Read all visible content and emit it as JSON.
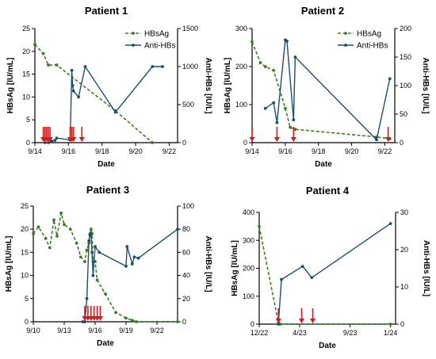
{
  "colors": {
    "hbsag": "#3b7d23",
    "antihbs": "#1d4e6b",
    "arrow": "#d11a1a",
    "axis": "#000000"
  },
  "legend": {
    "hbsag": "HBsAg",
    "antihbs": "Anti-HBs"
  },
  "chart_data": [
    {
      "type": "line",
      "title": "Patient 1",
      "xlabel": "Date",
      "ylabel_left": "HBsAg [IU/mL]",
      "ylabel_right": "Anti-HBs [IU/L]",
      "xlim": [
        0,
        8.5
      ],
      "xtick_values": [
        0,
        2,
        4,
        6,
        8
      ],
      "xtick_labels": [
        "9/14",
        "9/16",
        "9/18",
        "9/20",
        "9/22"
      ],
      "ylim_left": [
        0,
        25
      ],
      "yticks_left": [
        "0",
        "5",
        "10",
        "15",
        "20",
        "25"
      ],
      "ylim_right": [
        0,
        1500
      ],
      "yticks_right": [
        "0",
        "500",
        "1000",
        "1500"
      ],
      "legend_position": "top-right",
      "series": [
        {
          "name": "HBsAg",
          "axis": "left",
          "style": "dashed",
          "x": [
            0,
            0.5,
            0.8,
            1.3,
            4.8,
            7.0
          ],
          "y": [
            21.5,
            19.5,
            17,
            17,
            7,
            0
          ]
        },
        {
          "name": "Anti-HBs",
          "axis": "right",
          "style": "solid",
          "x": [
            0.6,
            0.8,
            1.0,
            1.2,
            1.3,
            2.1,
            2.2,
            2.25,
            2.3,
            2.6,
            3.0,
            4.8,
            7.0,
            7.6
          ],
          "y": [
            0,
            0,
            20,
            30,
            60,
            35,
            950,
            750,
            680,
            600,
            1000,
            400,
            1000,
            1000
          ]
        }
      ],
      "treatments_x": [
        0.5,
        0.6,
        0.7,
        0.8,
        0.9,
        2.1,
        2.2,
        2.3,
        2.8
      ]
    },
    {
      "type": "line",
      "title": "Patient 2",
      "xlabel": "Date",
      "ylabel_left": "HBsAg [IU/mL]",
      "ylabel_right": "Anti-HBs [IU/L]",
      "xlim": [
        0,
        8.6
      ],
      "xtick_values": [
        0,
        2,
        4,
        6,
        8
      ],
      "xtick_labels": [
        "9/14",
        "9/16",
        "9/18",
        "9/20",
        "9/22"
      ],
      "ylim_left": [
        0,
        300
      ],
      "yticks_left": [
        "0",
        "100",
        "200",
        "300"
      ],
      "ylim_right": [
        0,
        200
      ],
      "yticks_right": [
        "0",
        "50",
        "100",
        "150",
        "200"
      ],
      "legend_position": "top-right",
      "series": [
        {
          "name": "HBsAg",
          "axis": "left",
          "style": "dashed",
          "x": [
            0,
            0.5,
            0.8,
            1.3,
            2.0,
            2.3,
            2.6,
            7.5,
            8.3
          ],
          "y": [
            265,
            210,
            200,
            190,
            90,
            40,
            35,
            15,
            10
          ]
        },
        {
          "name": "Anti-HBs",
          "axis": "right",
          "style": "solid",
          "x": [
            0.8,
            1.3,
            1.5,
            2.0,
            2.1,
            2.5,
            2.6,
            7.5,
            8.3
          ],
          "y": [
            60,
            70,
            35,
            180,
            178,
            40,
            150,
            5,
            112
          ]
        }
      ],
      "treatments_x": [
        0,
        1.5,
        2.5,
        8.2
      ]
    },
    {
      "type": "line",
      "title": "Patient 3",
      "xlabel": "Date",
      "ylabel_left": "HBsAg [IU/mL]",
      "ylabel_right": "Anti-HBs [IU/L]",
      "xlim": [
        0,
        14
      ],
      "xtick_values": [
        0,
        3,
        6,
        9,
        12
      ],
      "xtick_labels": [
        "9/10",
        "9/13",
        "9/16",
        "9/19",
        "9/22"
      ],
      "ylim_left": [
        0,
        25
      ],
      "yticks_left": [
        "0",
        "5",
        "10",
        "15",
        "20",
        "25"
      ],
      "ylim_right": [
        0,
        100
      ],
      "yticks_right": [
        "0",
        "20",
        "40",
        "60",
        "80",
        "100"
      ],
      "legend_position": "none",
      "series": [
        {
          "name": "HBsAg",
          "axis": "left",
          "style": "dashed",
          "x": [
            0,
            0.5,
            1.2,
            1.6,
            2.0,
            2.3,
            2.7,
            3.0,
            3.6,
            4.2,
            4.6,
            5.0,
            5.2,
            5.4,
            5.5,
            5.6,
            5.7,
            5.8,
            6.0,
            6.2,
            7.0,
            8.0,
            9.0,
            9.6,
            10.0,
            14.0
          ],
          "y": [
            19,
            20.5,
            18,
            16,
            22,
            18.5,
            23.5,
            21,
            20,
            17,
            14,
            13,
            15.5,
            17,
            19,
            20,
            19,
            13,
            13,
            9,
            6,
            2,
            0.8,
            0.3,
            0,
            0
          ]
        },
        {
          "name": "Anti-HBs",
          "axis": "right",
          "style": "solid",
          "x": [
            4.8,
            5.0,
            5.2,
            5.4,
            5.5,
            5.6,
            5.7,
            5.8,
            6.0,
            6.4,
            9.0,
            9.1,
            9.6,
            9.8,
            10.2,
            14.0
          ],
          "y": [
            0,
            0,
            20,
            70,
            75,
            76,
            60,
            40,
            65,
            60,
            48,
            65,
            50,
            56,
            55,
            80
          ]
        }
      ],
      "treatments_x": [
        5.0,
        5.3,
        5.6,
        5.9,
        6.2,
        6.5
      ]
    },
    {
      "type": "line",
      "title": "Patient 4",
      "xlabel": "Date",
      "ylabel_left": "HBsAg [IU/mL]",
      "ylabel_right": "Anti-HBs [IU/L]",
      "xlim": [
        0,
        13.5
      ],
      "xtick_values": [
        0,
        4,
        9,
        13
      ],
      "xtick_labels": [
        "12/22",
        "4/23",
        "9/23",
        "1/24"
      ],
      "ylim_left": [
        0,
        400
      ],
      "yticks_left": [
        "0",
        "100",
        "200",
        "300",
        "400"
      ],
      "ylim_right": [
        0,
        30
      ],
      "yticks_right": [
        "0",
        "10",
        "20",
        "30"
      ],
      "legend_position": "none",
      "series": [
        {
          "name": "HBsAg",
          "axis": "left",
          "style": "dashed",
          "x": [
            0,
            1.9,
            2.1,
            13.0
          ],
          "y": [
            350,
            5,
            0,
            0
          ]
        },
        {
          "name": "Anti-HBs",
          "axis": "right",
          "style": "solid",
          "x": [
            1.9,
            2.2,
            4.3,
            5.2,
            13.0
          ],
          "y": [
            0,
            12,
            15.5,
            12.5,
            27
          ]
        }
      ],
      "treatments_x": [
        1.9,
        4.2,
        5.3
      ]
    }
  ]
}
